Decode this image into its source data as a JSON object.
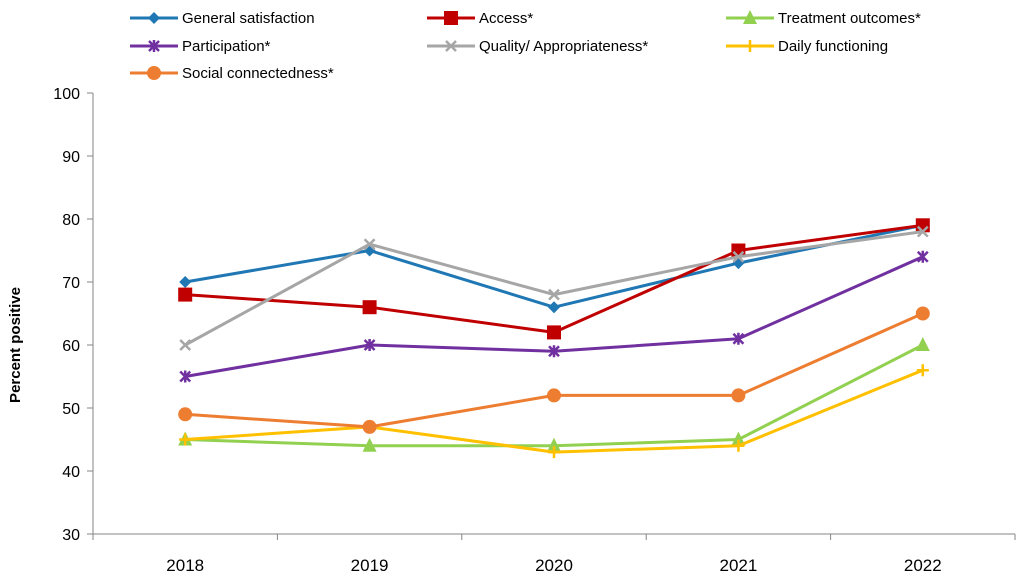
{
  "chart_data": {
    "type": "line",
    "title": "",
    "xlabel": "",
    "ylabel": "Percent positive",
    "ylim": [
      30,
      100
    ],
    "yticks": [
      30,
      40,
      50,
      60,
      70,
      80,
      90,
      100
    ],
    "categories": [
      "2018",
      "2019",
      "2020",
      "2021",
      "2022"
    ],
    "grid": false,
    "legend_position": "top",
    "series": [
      {
        "name": "General satisfaction",
        "color": "#1f77b4",
        "marker": "diamond",
        "values": [
          70,
          75,
          66,
          73,
          79
        ]
      },
      {
        "name": "Access*",
        "color": "#c00000",
        "marker": "square",
        "values": [
          68,
          66,
          62,
          75,
          79
        ]
      },
      {
        "name": "Treatment outcomes*",
        "color": "#92d050",
        "marker": "triangle",
        "values": [
          45,
          44,
          44,
          45,
          60
        ]
      },
      {
        "name": "Participation*",
        "color": "#7030a0",
        "marker": "star",
        "values": [
          55,
          60,
          59,
          61,
          74
        ]
      },
      {
        "name": "Quality/ Appropriateness*",
        "color": "#a6a6a6",
        "marker": "x",
        "values": [
          60,
          76,
          68,
          74,
          78
        ]
      },
      {
        "name": "Daily functioning",
        "color": "#ffc000",
        "marker": "plus",
        "values": [
          45,
          47,
          43,
          44,
          56
        ]
      },
      {
        "name": "Social connectedness*",
        "color": "#ed7d31",
        "marker": "circle",
        "values": [
          49,
          47,
          52,
          52,
          65
        ]
      }
    ]
  }
}
